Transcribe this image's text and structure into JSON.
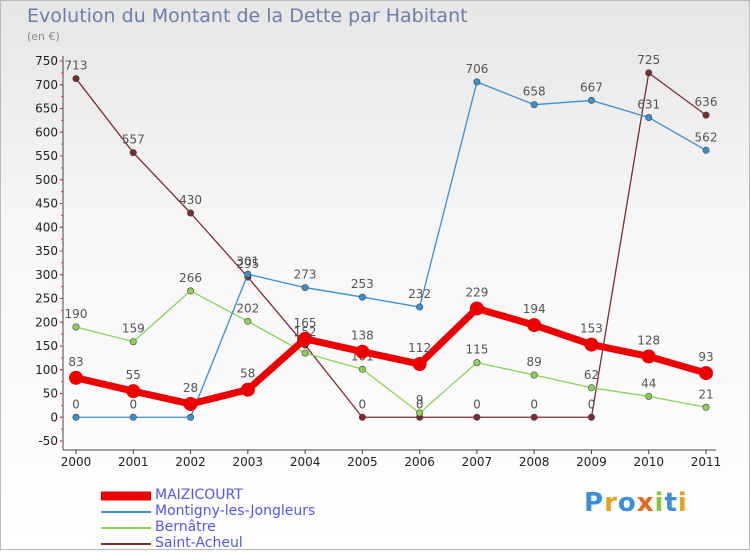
{
  "title": "Evolution du Montant de la Dette par Habitant",
  "unit_label": "(en €)",
  "brand": {
    "text": "Proxiti",
    "colors": [
      "#3b8fd9",
      "#e8a31d",
      "#3b8fd9",
      "#e8671d",
      "#8bc53f",
      "#3b8fd9",
      "#e8a31d"
    ]
  },
  "chart_data": {
    "type": "line",
    "title": "Evolution du Montant de la Dette par Habitant",
    "ylabel": "(en €)",
    "xlabel": "",
    "x": [
      "2000",
      "2001",
      "2002",
      "2003",
      "2004",
      "2005",
      "2006",
      "2007",
      "2008",
      "2009",
      "2010",
      "2011"
    ],
    "ylim": [
      -50,
      750
    ],
    "yticks": [
      -50,
      0,
      50,
      100,
      150,
      200,
      250,
      300,
      350,
      400,
      450,
      500,
      550,
      600,
      650,
      700,
      750
    ],
    "grid": false,
    "legend_position": "bottom-left",
    "series": [
      {
        "name": "MAIZICOURT",
        "color": "#ee0000",
        "emphasis": true,
        "values": [
          83,
          55,
          28,
          58,
          165,
          138,
          112,
          229,
          194,
          153,
          128,
          93
        ]
      },
      {
        "name": "Montigny-les-Jongleurs",
        "color": "#3a8fd0",
        "emphasis": false,
        "values": [
          0,
          0,
          0,
          301,
          273,
          253,
          232,
          706,
          658,
          667,
          631,
          562
        ]
      },
      {
        "name": "Bernâtre",
        "color": "#88d456",
        "emphasis": false,
        "values": [
          190,
          159,
          266,
          202,
          135,
          101,
          9,
          115,
          89,
          62,
          44,
          21
        ]
      },
      {
        "name": "Saint-Acheul",
        "color": "#7b2d2d",
        "emphasis": false,
        "values": [
          713,
          557,
          430,
          295,
          152,
          0,
          0,
          0,
          0,
          0,
          725,
          636
        ]
      }
    ]
  }
}
